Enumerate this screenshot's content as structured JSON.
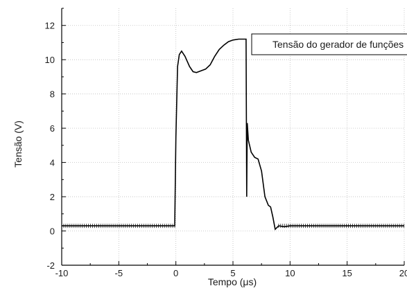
{
  "chart_data": {
    "type": "line",
    "xlabel_prefix": "Tempo (",
    "xlabel_unit_symbol": "μ",
    "xlabel_suffix": "s)",
    "ylabel": "Tensão (V)",
    "xlim": [
      -10,
      20
    ],
    "ylim": [
      -2,
      13
    ],
    "x_ticks": [
      -10,
      -5,
      0,
      5,
      10,
      15,
      20
    ],
    "y_ticks": [
      -2,
      0,
      2,
      4,
      6,
      8,
      10,
      12
    ],
    "x_tick_labels": [
      "-10",
      "-5",
      "0",
      "5",
      "10",
      "15",
      "20"
    ],
    "y_tick_labels": [
      "-2",
      "0",
      "2",
      "4",
      "6",
      "8",
      "10",
      "12"
    ],
    "grid": true,
    "legend_position": "top-right",
    "series": [
      {
        "name": "Tensão do gerador de funções",
        "color": "#000000",
        "x": [
          -10,
          -5,
          -0.1,
          0.0,
          0.15,
          0.3,
          0.5,
          0.8,
          1.2,
          1.5,
          1.8,
          2.2,
          2.6,
          3.0,
          3.4,
          3.8,
          4.2,
          4.6,
          5.0,
          5.5,
          6.0,
          6.15,
          6.2,
          6.25,
          6.35,
          6.6,
          6.9,
          7.2,
          7.5,
          7.8,
          8.1,
          8.3,
          8.5,
          8.7,
          9.0,
          9.5,
          10.0,
          12.0,
          15.0,
          18.0,
          20.0
        ],
        "y": [
          0.3,
          0.3,
          0.3,
          5.5,
          9.6,
          10.3,
          10.5,
          10.2,
          9.6,
          9.3,
          9.25,
          9.35,
          9.45,
          9.7,
          10.2,
          10.6,
          10.85,
          11.05,
          11.15,
          11.2,
          11.2,
          11.2,
          2.0,
          6.3,
          5.3,
          4.6,
          4.3,
          4.2,
          3.5,
          2.0,
          1.5,
          1.4,
          0.8,
          0.1,
          0.3,
          0.25,
          0.3,
          0.3,
          0.3,
          0.3,
          0.3
        ]
      }
    ]
  }
}
